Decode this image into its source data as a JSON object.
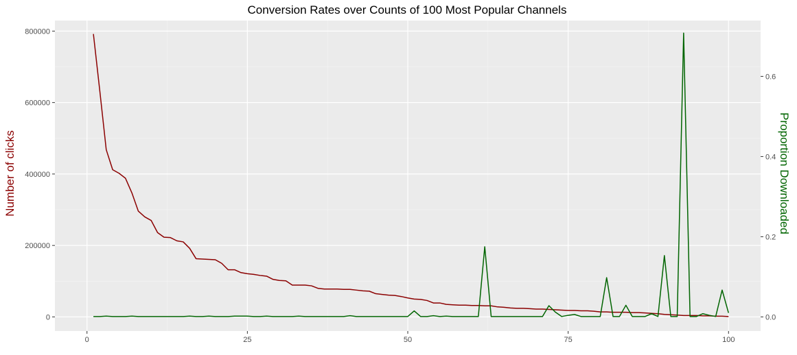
{
  "chart_data": {
    "type": "line",
    "title": "Conversion Rates over Counts of 100 Most Popular Channels",
    "x": {
      "ticks": [
        0,
        25,
        50,
        75,
        100
      ],
      "tick_labels": [
        "0",
        "25",
        "50",
        "75",
        "100"
      ],
      "range": [
        -5,
        105
      ]
    },
    "y_left": {
      "label": "Number of clicks",
      "ticks": [
        0,
        200000,
        400000,
        600000,
        800000
      ],
      "tick_labels": [
        "0",
        "200000",
        "400000",
        "600000",
        "800000"
      ],
      "range": [
        -39500,
        829500
      ]
    },
    "y_right": {
      "label": "Proportion Downloaded",
      "ticks": [
        0.0,
        0.2,
        0.4,
        0.6
      ],
      "tick_labels": [
        "0.0",
        "0.2",
        "0.4",
        "0.6"
      ],
      "range": [
        -0.0352,
        0.7392
      ]
    },
    "grid": true,
    "series": [
      {
        "axis": "left",
        "color": "#8b0000",
        "values": [
          792000,
          632000,
          468000,
          412000,
          402000,
          388000,
          347000,
          296000,
          280000,
          270000,
          236000,
          223000,
          222000,
          213000,
          210000,
          192000,
          163000,
          162000,
          161000,
          160000,
          150000,
          132000,
          132000,
          124000,
          121000,
          119000,
          116000,
          114000,
          105000,
          102000,
          101000,
          89000,
          89000,
          89000,
          87000,
          80000,
          78000,
          78000,
          78000,
          77000,
          77000,
          75000,
          73000,
          72000,
          65000,
          63000,
          61000,
          60000,
          57000,
          53000,
          50000,
          49000,
          46000,
          39000,
          39000,
          35000,
          34000,
          33000,
          33000,
          32000,
          32000,
          31000,
          31000,
          28000,
          27000,
          25000,
          24000,
          24000,
          23000,
          22000,
          22000,
          21000,
          20000,
          19000,
          18000,
          18000,
          17000,
          17000,
          16000,
          14000,
          14000,
          13000,
          13000,
          13000,
          12000,
          12000,
          11000,
          10000,
          9000,
          7000,
          6000,
          5000,
          4000,
          4000,
          4000,
          3000,
          3000,
          2000,
          2000,
          1000
        ]
      },
      {
        "axis": "right",
        "color": "#006400",
        "values": [
          0.001,
          0.001,
          0.002,
          0.001,
          0.001,
          0.001,
          0.002,
          0.001,
          0.001,
          0.001,
          0.001,
          0.001,
          0.001,
          0.001,
          0.001,
          0.002,
          0.001,
          0.001,
          0.002,
          0.001,
          0.001,
          0.001,
          0.002,
          0.002,
          0.002,
          0.001,
          0.001,
          0.002,
          0.001,
          0.001,
          0.001,
          0.001,
          0.002,
          0.001,
          0.001,
          0.001,
          0.001,
          0.001,
          0.001,
          0.001,
          0.003,
          0.001,
          0.001,
          0.001,
          0.001,
          0.001,
          0.001,
          0.001,
          0.001,
          0.001,
          0.015,
          0.001,
          0.001,
          0.003,
          0.001,
          0.002,
          0.001,
          0.001,
          0.001,
          0.001,
          0.001,
          0.175,
          0.001,
          0.001,
          0.001,
          0.001,
          0.001,
          0.001,
          0.001,
          0.001,
          0.001,
          0.028,
          0.012,
          0.001,
          0.004,
          0.006,
          0.001,
          0.001,
          0.001,
          0.001,
          0.098,
          0.001,
          0.001,
          0.029,
          0.001,
          0.001,
          0.001,
          0.008,
          0.001,
          0.153,
          0.001,
          0.001,
          0.708,
          0.001,
          0.001,
          0.008,
          0.004,
          0.001,
          0.067,
          0.01
        ]
      }
    ]
  }
}
